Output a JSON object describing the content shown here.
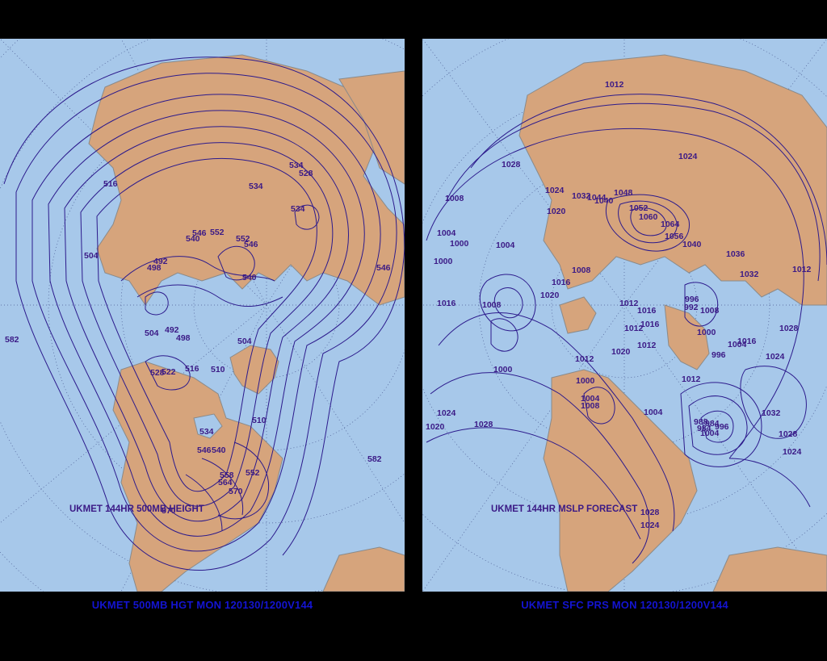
{
  "colors": {
    "ocean": "#a7c8ea",
    "land": "#d6a47c",
    "border": "#8a8a8a",
    "contour": "#2c1a8c",
    "graticule": "#4a5a92",
    "caption": "#1414d2",
    "background": "#000000"
  },
  "left": {
    "caption": "UKMET 500MB HGT MON 120130/1200V144",
    "map_label": "UKMET 144HR 500MB HEIGHT",
    "contour_labels": [
      "516",
      "534",
      "528",
      "534",
      "534",
      "546",
      "552",
      "546",
      "552",
      "540",
      "504",
      "492",
      "498",
      "546",
      "540",
      "582",
      "504",
      "492",
      "498",
      "504",
      "528",
      "522",
      "516",
      "510",
      "510",
      "534",
      "546",
      "540",
      "558",
      "564",
      "552",
      "570",
      "582",
      "570"
    ]
  },
  "right": {
    "caption": "UKMET SFC PRS MON 120130/1200V144",
    "map_label": "UKMET 144HR MSLP FORECAST",
    "contour_labels": [
      "1012",
      "1024",
      "1028",
      "1024",
      "1032",
      "1040",
      "1044",
      "1048",
      "1052",
      "1060",
      "1064",
      "1056",
      "1040",
      "1020",
      "1036",
      "1032",
      "1012",
      "1008",
      "1004",
      "1000",
      "1000",
      "1004",
      "1016",
      "1016",
      "1008",
      "1008",
      "1020",
      "1012",
      "1016",
      "1016",
      "1012",
      "1012",
      "996",
      "992",
      "1008",
      "1004",
      "1016",
      "1028",
      "1020",
      "1012",
      "1000",
      "1000",
      "996",
      "1024",
      "1000",
      "1004",
      "1008",
      "1012",
      "1020",
      "1004",
      "1024",
      "1028",
      "1032",
      "1028",
      "1024",
      "984",
      "996",
      "1004",
      "1028",
      "1024",
      "988",
      "984"
    ]
  }
}
